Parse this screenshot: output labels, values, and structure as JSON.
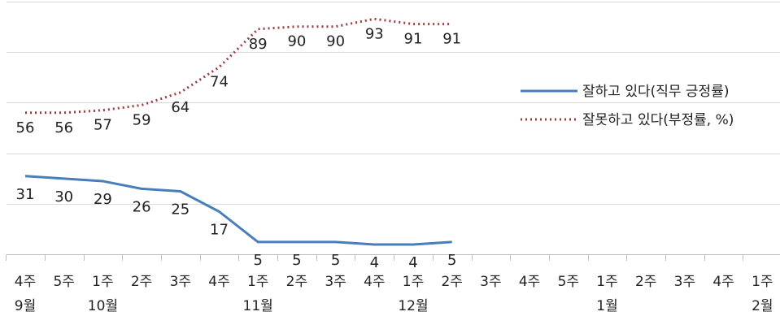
{
  "chart_data": {
    "type": "line",
    "x_week_labels": [
      "4주",
      "5주",
      "1주",
      "2주",
      "3주",
      "4주",
      "1주",
      "2주",
      "3주",
      "4주",
      "1주",
      "2주",
      "3주",
      "4주",
      "5주",
      "1주",
      "2주",
      "3주",
      "4주",
      "1주"
    ],
    "x_month_labels": [
      {
        "index": 0,
        "label": "9월"
      },
      {
        "index": 2,
        "label": "10월"
      },
      {
        "index": 6,
        "label": "11월"
      },
      {
        "index": 10,
        "label": "12월"
      },
      {
        "index": 15,
        "label": "1월"
      },
      {
        "index": 19,
        "label": "2월"
      }
    ],
    "series": [
      {
        "name": "잘하고 있다(직무 긍정률)",
        "color": "#4a7ebb",
        "style": "solid",
        "values": [
          31,
          30,
          29,
          26,
          25,
          17,
          5,
          5,
          5,
          4,
          4,
          5
        ]
      },
      {
        "name": "잘못하고 있다(부정률, %)",
        "color": "#9b3d40",
        "style": "dotted",
        "values": [
          56,
          56,
          57,
          59,
          64,
          74,
          89,
          90,
          90,
          93,
          91,
          91
        ]
      }
    ],
    "ylim": [
      0,
      100
    ],
    "grid": true,
    "legend_position": "right"
  }
}
